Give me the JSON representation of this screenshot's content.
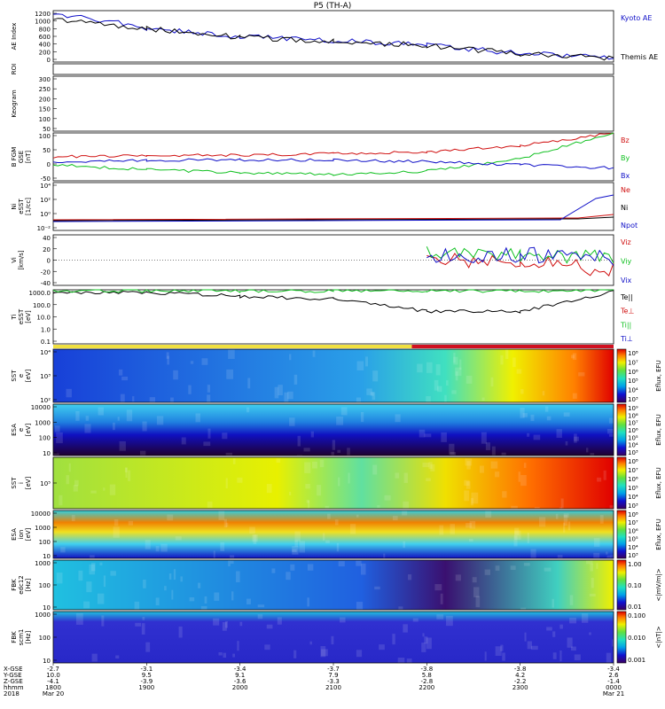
{
  "title": "P5 (TH-A)",
  "colors": {
    "blue": "#1010c8",
    "red": "#d01010",
    "green": "#10c020",
    "black": "#000000"
  },
  "panels": [
    {
      "id": "ae",
      "ylabel": [
        "AE Index"
      ],
      "ticks": [
        "1200",
        "1000",
        "800",
        "600",
        "400",
        "200",
        "0"
      ],
      "legend": [
        {
          "text": "Kyoto AE",
          "color": "#1010c8"
        },
        {
          "text": "Themis AE",
          "color": "#000000"
        }
      ]
    },
    {
      "id": "roi",
      "ylabel": [
        "ROI"
      ],
      "ticks": [],
      "legend": []
    },
    {
      "id": "keogram",
      "ylabel": [
        "Keogram"
      ],
      "ticks": [
        "300",
        "250",
        "200",
        "150",
        "100",
        "50"
      ],
      "legend": []
    },
    {
      "id": "bfgm",
      "ylabel": [
        "B FGM",
        "GSE",
        "[nT]"
      ],
      "ticks": [
        "100",
        "50",
        "0",
        "-50"
      ],
      "legend": [
        {
          "text": "Bz",
          "color": "#d01010"
        },
        {
          "text": "By",
          "color": "#10c020"
        },
        {
          "text": "Bx",
          "color": "#1010c8"
        }
      ]
    },
    {
      "id": "ni",
      "ylabel": [
        "Ni",
        "eSST",
        "[1/cc]"
      ],
      "ticks": [
        "10⁴",
        "10²",
        "10⁰",
        "10⁻²"
      ],
      "legend": [
        {
          "text": "Ne",
          "color": "#d01010"
        },
        {
          "text": "Ni",
          "color": "#000000"
        },
        {
          "text": "Npot",
          "color": "#1010c8"
        }
      ]
    },
    {
      "id": "vi",
      "ylabel": [
        "Vi",
        "[km/s]"
      ],
      "ticks": [
        "40",
        "20",
        "0",
        "-20",
        "-40"
      ],
      "legend": [
        {
          "text": "Viz",
          "color": "#d01010"
        },
        {
          "text": "Viy",
          "color": "#10c020"
        },
        {
          "text": "Vix",
          "color": "#1010c8"
        }
      ]
    },
    {
      "id": "ti",
      "ylabel": [
        "Ti",
        "eSST",
        "[eV]"
      ],
      "ticks": [
        "1000.0",
        "100.0",
        "10.0",
        "1.0",
        "0.1"
      ],
      "legend": [
        {
          "text": "Te||",
          "color": "#000000"
        },
        {
          "text": "Te⊥",
          "color": "#d01010"
        },
        {
          "text": "Ti||",
          "color": "#10c020"
        },
        {
          "text": "Ti⊥",
          "color": "#1010c8"
        }
      ]
    },
    {
      "id": "sst_e",
      "ylabel": [
        "SST",
        "e",
        "[eV]"
      ],
      "ticks": [
        "10⁴",
        "10³",
        "10²"
      ],
      "cb_label": "Eflux, EFU",
      "cb_ticks": [
        "10⁸",
        "10⁷",
        "10⁶",
        "10⁵",
        "10⁴",
        "10³"
      ]
    },
    {
      "id": "esa_e",
      "ylabel": [
        "ESA",
        "e",
        "[eV]"
      ],
      "ticks": [
        "10000",
        "1000",
        "100",
        "10"
      ],
      "cb_label": "Eflux, EFU",
      "cb_ticks": [
        "10⁹",
        "10⁸",
        "10⁷",
        "10⁶",
        "10⁵",
        "10⁴",
        "10³"
      ]
    },
    {
      "id": "sst_i",
      "ylabel": [
        "SST",
        "i",
        "[eV]"
      ],
      "ticks": [
        "10⁵"
      ],
      "cb_label": "Eflux, EFU",
      "cb_ticks": [
        "10⁸",
        "10⁷",
        "10⁶",
        "10⁵",
        "10⁴",
        "10³"
      ]
    },
    {
      "id": "esa_i",
      "ylabel": [
        "ESA",
        "ion",
        "[eV]"
      ],
      "ticks": [
        "10000",
        "1000",
        "100",
        "10"
      ],
      "cb_label": "Eflux, EFU",
      "cb_ticks": [
        "10⁸",
        "10⁷",
        "10⁶",
        "10⁵",
        "10⁴",
        "10³"
      ]
    },
    {
      "id": "fbk_e",
      "ylabel": [
        "FBK",
        "edc12",
        "[Hz]"
      ],
      "ticks": [
        "1000",
        "100",
        "10"
      ],
      "cb_label": "<|mV/m|>",
      "cb_ticks": [
        "1.00",
        "0.10",
        "0.01"
      ]
    },
    {
      "id": "fbk_b",
      "ylabel": [
        "FBK",
        "scm1",
        "[Hz]"
      ],
      "ticks": [
        "1000",
        "100",
        "10"
      ],
      "cb_label": "<|nT|>",
      "cb_ticks": [
        "0.100",
        "0.010",
        "0.001"
      ]
    }
  ],
  "xaxis": {
    "row_labels": [
      "X-GSE",
      "Y-GSE",
      "Z-GSE",
      "hhmm",
      "2018"
    ],
    "columns": [
      {
        "v": [
          "-2.7",
          "10.0",
          "-4.1",
          "1800",
          "Mar 20"
        ]
      },
      {
        "v": [
          "-3.1",
          "9.5",
          "-3.9",
          "1900",
          ""
        ]
      },
      {
        "v": [
          "-3.4",
          "9.1",
          "-3.6",
          "2000",
          ""
        ]
      },
      {
        "v": [
          "-3.7",
          "7.9",
          "-3.3",
          "2100",
          ""
        ]
      },
      {
        "v": [
          "-3.8",
          "5.8",
          "-2.8",
          "2200",
          ""
        ]
      },
      {
        "v": [
          "-3.8",
          "4.2",
          "-2.2",
          "2300",
          ""
        ]
      },
      {
        "v": [
          "-3.4",
          "2.6",
          "-1.4",
          "0000",
          "Mar 21"
        ]
      }
    ]
  },
  "chart_data": {
    "type": "line",
    "title": "P5 (TH-A)",
    "x_hours": [
      "1800",
      "1900",
      "2000",
      "2100",
      "2200",
      "2300",
      "0000"
    ],
    "ae_index": {
      "series": [
        {
          "name": "Kyoto AE",
          "values": [
            1150,
            800,
            600,
            500,
            400,
            200,
            100
          ]
        },
        {
          "name": "Themis AE",
          "values": [
            1000,
            780,
            580,
            480,
            390,
            190,
            90
          ]
        }
      ],
      "ylim": [
        0,
        1200
      ]
    },
    "b_fgm_nT": {
      "series": [
        {
          "name": "Bz",
          "values": [
            25,
            30,
            30,
            35,
            40,
            60,
            100
          ]
        },
        {
          "name": "By",
          "values": [
            0,
            -15,
            -25,
            -30,
            -20,
            20,
            100
          ]
        },
        {
          "name": "Bx",
          "values": [
            10,
            15,
            15,
            15,
            10,
            0,
            -10
          ]
        }
      ],
      "ylim": [
        -50,
        100
      ]
    },
    "vi_kms": {
      "series": [
        {
          "name": "Viz",
          "values": [
            null,
            null,
            null,
            null,
            0,
            -5,
            -20
          ]
        },
        {
          "name": "Viy",
          "values": [
            null,
            null,
            null,
            null,
            15,
            10,
            5
          ]
        },
        {
          "name": "Vix",
          "values": [
            null,
            null,
            null,
            null,
            10,
            10,
            5
          ]
        }
      ],
      "ylim": [
        -50,
        50
      ]
    },
    "ti_eV": {
      "series": [
        {
          "name": "Te||",
          "values": [
            2000,
            1800,
            900,
            500,
            50,
            50,
            2000
          ]
        },
        {
          "name": "Ti||",
          "values": [
            2500,
            2500,
            2500,
            2500,
            2500,
            2500,
            3000
          ]
        }
      ],
      "ylim": [
        0.1,
        3000
      ],
      "yscale": "log"
    }
  }
}
